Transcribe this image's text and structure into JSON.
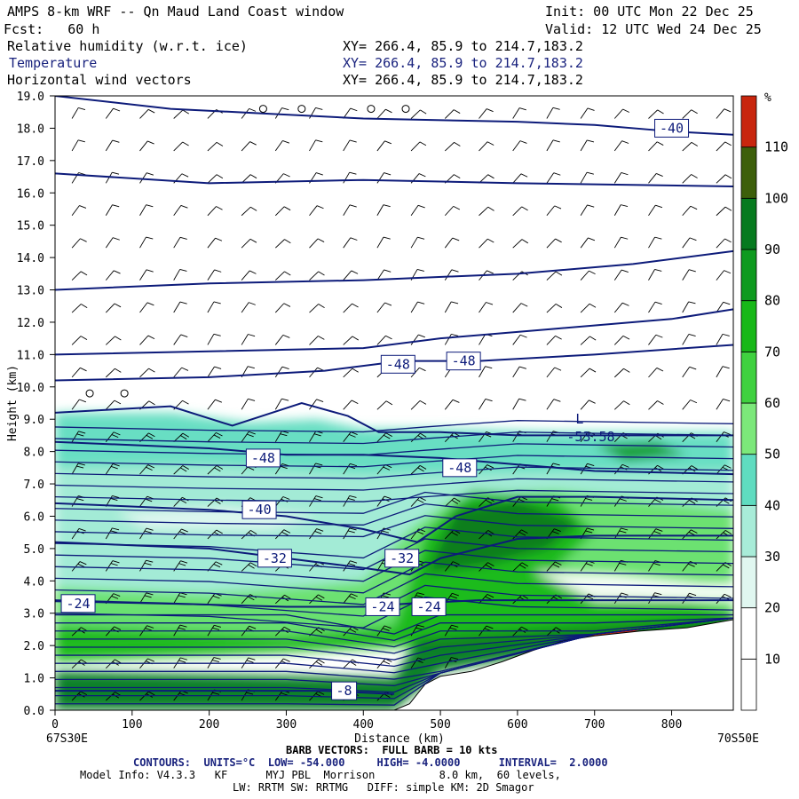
{
  "header": {
    "title": "AMPS 8-km WRF -- Qn Maud Land Coast window",
    "init": "Init: 00 UTC Mon 22 Dec 25",
    "fcst": "Fcst:   60 h",
    "valid": "Valid: 12 UTC Wed 24 Dec 25",
    "fields": [
      {
        "name": "Relative humidity (w.r.t. ice)",
        "xy": "XY= 266.4, 85.9 to 214.7,183.2"
      },
      {
        "name": "Temperature",
        "xy": "XY= 266.4, 85.9 to 214.7,183.2"
      },
      {
        "name": "Horizontal wind vectors",
        "xy": "XY= 266.4, 85.9 to 214.7,183.2"
      }
    ]
  },
  "colors": {
    "contour": "#0d1b7a",
    "fill_bands": [
      "#ffffff",
      "#ffffff",
      "#ffffff",
      "#e0f7f0",
      "#a8ecd8",
      "#5fdcc0",
      "#69e06c",
      "#3fd13f",
      "#18b818",
      "#0e9a1f",
      "#067a1f",
      "#3d5f0b",
      "#c8260e"
    ]
  },
  "chart_data": {
    "type": "heatmap",
    "title": "Relative humidity (w.r.t. ice) / Temperature / Horizontal wind vectors",
    "xlabel": "Distance (km)",
    "ylabel": "Height (km)",
    "xlim": [
      0,
      880
    ],
    "ylim": [
      0,
      19
    ],
    "x_ticks": [
      0,
      100,
      200,
      300,
      400,
      500,
      600,
      700,
      800
    ],
    "y_ticks": [
      "0.0",
      "1.0",
      "2.0",
      "3.0",
      "4.0",
      "5.0",
      "6.0",
      "7.0",
      "8.0",
      "9.0",
      "10.0",
      "11.0",
      "12.0",
      "13.0",
      "14.0",
      "15.0",
      "16.0",
      "17.0",
      "18.0",
      "19.0"
    ],
    "x_start_label": "67S30E",
    "x_end_label": "70S50E",
    "colorbar": {
      "unit": "%",
      "levels": [
        10,
        20,
        30,
        40,
        50,
        60,
        70,
        80,
        90,
        100,
        110
      ],
      "band_colors": [
        "#ffffff",
        "#ffffff",
        "#e0f7f0",
        "#a8ecd8",
        "#5fdcc0",
        "#7ce87a",
        "#3fd13f",
        "#18b818",
        "#0e9a1f",
        "#067a1f",
        "#3d5f0b",
        "#c8260e"
      ]
    },
    "terrain_km": [
      [
        0,
        0
      ],
      [
        440,
        0
      ],
      [
        460,
        0.2
      ],
      [
        480,
        0.8
      ],
      [
        500,
        1.05
      ],
      [
        540,
        1.2
      ],
      [
        580,
        1.5
      ],
      [
        620,
        1.85
      ],
      [
        660,
        2.15
      ],
      [
        700,
        2.3
      ],
      [
        760,
        2.45
      ],
      [
        820,
        2.55
      ],
      [
        880,
        2.8
      ]
    ],
    "temperature_contours": [
      {
        "label": "-40",
        "points": [
          [
            0,
            19.0
          ],
          [
            150,
            18.6
          ],
          [
            400,
            18.3
          ],
          [
            600,
            18.2
          ],
          [
            700,
            18.1
          ],
          [
            800,
            17.9
          ],
          [
            880,
            17.8
          ]
        ]
      },
      {
        "label": "",
        "points": [
          [
            0,
            16.6
          ],
          [
            200,
            16.3
          ],
          [
            400,
            16.4
          ],
          [
            600,
            16.3
          ],
          [
            880,
            16.2
          ]
        ]
      },
      {
        "label": "",
        "points": [
          [
            0,
            13.0
          ],
          [
            200,
            13.2
          ],
          [
            400,
            13.3
          ],
          [
            600,
            13.5
          ],
          [
            750,
            13.8
          ],
          [
            880,
            14.2
          ]
        ]
      },
      {
        "label": "",
        "points": [
          [
            0,
            11.0
          ],
          [
            200,
            11.1
          ],
          [
            400,
            11.2
          ],
          [
            500,
            11.5
          ],
          [
            650,
            11.8
          ],
          [
            800,
            12.1
          ],
          [
            880,
            12.4
          ]
        ]
      },
      {
        "label": "-48",
        "points": [
          [
            0,
            10.2
          ],
          [
            200,
            10.3
          ],
          [
            350,
            10.5
          ],
          [
            450,
            10.8
          ],
          [
            550,
            10.8
          ],
          [
            700,
            11.0
          ],
          [
            880,
            11.3
          ]
        ]
      },
      {
        "label": "",
        "points": [
          [
            0,
            9.2
          ],
          [
            150,
            9.4
          ],
          [
            230,
            8.8
          ],
          [
            320,
            9.5
          ],
          [
            380,
            9.1
          ],
          [
            420,
            8.6
          ],
          [
            500,
            8.6
          ],
          [
            600,
            8.5
          ],
          [
            880,
            8.5
          ]
        ]
      },
      {
        "label": "-48",
        "points": [
          [
            0,
            8.3
          ],
          [
            200,
            8.1
          ],
          [
            300,
            7.9
          ],
          [
            400,
            7.9
          ],
          [
            500,
            7.8
          ],
          [
            600,
            7.6
          ],
          [
            700,
            7.4
          ],
          [
            880,
            7.3
          ]
        ]
      },
      {
        "label": "-40",
        "points": [
          [
            0,
            6.4
          ],
          [
            200,
            6.2
          ],
          [
            300,
            6.0
          ],
          [
            400,
            5.6
          ],
          [
            470,
            5.2
          ],
          [
            520,
            6.0
          ],
          [
            600,
            6.6
          ],
          [
            700,
            6.6
          ],
          [
            880,
            6.5
          ]
        ]
      },
      {
        "label": "-32",
        "points": [
          [
            0,
            5.2
          ],
          [
            200,
            5.0
          ],
          [
            300,
            4.7
          ],
          [
            400,
            4.4
          ],
          [
            460,
            4.2
          ],
          [
            500,
            4.7
          ],
          [
            600,
            5.3
          ],
          [
            700,
            5.4
          ],
          [
            880,
            5.4
          ]
        ]
      },
      {
        "label": "-24",
        "points": [
          [
            0,
            3.4
          ],
          [
            150,
            3.3
          ],
          [
            300,
            3.2
          ],
          [
            400,
            3.2
          ],
          [
            460,
            3.3
          ],
          [
            550,
            3.4
          ],
          [
            700,
            3.4
          ],
          [
            880,
            3.4
          ]
        ]
      },
      {
        "label": "-8",
        "points": [
          [
            0,
            0.6
          ],
          [
            200,
            0.6
          ],
          [
            350,
            0.6
          ],
          [
            440,
            0.5
          ]
        ]
      }
    ],
    "contour_labels": [
      {
        "text": "-40",
        "x": 800,
        "y": 18.0
      },
      {
        "text": "-48",
        "x": 445,
        "y": 10.7
      },
      {
        "text": "-48",
        "x": 530,
        "y": 10.8
      },
      {
        "text": "-48",
        "x": 270,
        "y": 7.8
      },
      {
        "text": "-48",
        "x": 525,
        "y": 7.5
      },
      {
        "text": "-40",
        "x": 265,
        "y": 6.2
      },
      {
        "text": "-32",
        "x": 285,
        "y": 4.7
      },
      {
        "text": "-32",
        "x": 450,
        "y": 4.7
      },
      {
        "text": "-24",
        "x": 30,
        "y": 3.3
      },
      {
        "text": "-24",
        "x": 425,
        "y": 3.2
      },
      {
        "text": "-24",
        "x": 485,
        "y": 3.2
      },
      {
        "text": "-8",
        "x": 375,
        "y": 0.6
      }
    ],
    "low_marker": {
      "letter": "L",
      "value": "-53.58",
      "x": 710,
      "y": 9.0
    },
    "calm_circles": [
      [
        270,
        18.6
      ],
      [
        320,
        18.6
      ],
      [
        410,
        18.6
      ],
      [
        455,
        18.6
      ],
      [
        45,
        9.8
      ],
      [
        90,
        9.8
      ]
    ]
  },
  "footer": {
    "barb": "BARB VECTORS:  FULL BARB = 10 kts",
    "contours": "CONTOURS:  UNITS=°C  LOW= -54.000     HIGH= -4.0000      INTERVAL=  2.0000",
    "model_info": "Model Info: V4.3.3   KF      MYJ PBL  Morrison          8.0 km,  60 levels,",
    "physics": "LW: RRTM SW: RRTMG   DIFF: simple KM: 2D Smagor"
  }
}
